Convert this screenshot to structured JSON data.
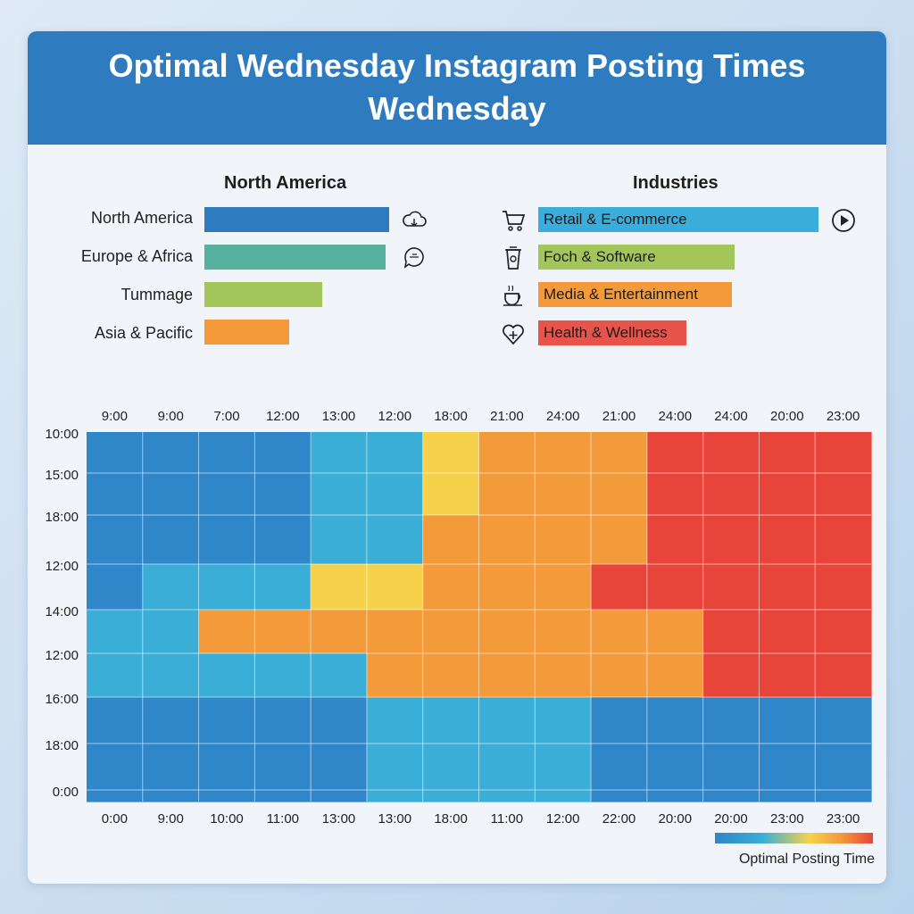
{
  "title_line1": "Optimal Wednesday Instagram Posting Times",
  "title_line2": "Wednesday",
  "regions": {
    "title": "North America",
    "items": [
      {
        "label": "North America",
        "value": 1.0,
        "color": "#2f7bbf",
        "icon": "cloud-icon"
      },
      {
        "label": "Europe & Africa",
        "value": 0.98,
        "color": "#57b19f",
        "icon": "chat-icon"
      },
      {
        "label": "Tummage",
        "value": 0.64,
        "color": "#a3c65b",
        "icon": ""
      },
      {
        "label": "Asia & Pacific",
        "value": 0.46,
        "color": "#f59a3a",
        "icon": ""
      }
    ]
  },
  "industries": {
    "title": "Industries",
    "items": [
      {
        "label": "Retail & E-commerce",
        "value": 1.0,
        "color": "#3aaddb",
        "icon": "shopping-cart-icon",
        "trail_icon": "play-icon"
      },
      {
        "label": "Foch & Software",
        "value": 0.7,
        "color": "#a3c65b",
        "icon": "coffee-cup-icon"
      },
      {
        "label": "Media & Entertainment",
        "value": 0.69,
        "color": "#f59a3a",
        "icon": "teacup-icon"
      },
      {
        "label": "Health & Wellness",
        "value": 0.53,
        "color": "#e8534a",
        "icon": "heart-plus-icon"
      }
    ]
  },
  "legend": {
    "label": "Optimal Posting Time",
    "colors": [
      "#2f86c8",
      "#3aaed6",
      "#f6d24a",
      "#f39a3a",
      "#e8453a"
    ]
  },
  "chart_data": {
    "type": "heatmap",
    "x_top_labels": [
      "9:00",
      "9:00",
      "7:00",
      "12:00",
      "13:00",
      "12:00",
      "18:00",
      "21:00",
      "24:00",
      "21:00",
      "24:00",
      "24:00",
      "20:00",
      "23:00"
    ],
    "x_bottom_labels": [
      "0:00",
      "9:00",
      "10:00",
      "11:00",
      "13:00",
      "13:00",
      "18:00",
      "11:00",
      "12:00",
      "22:00",
      "20:00",
      "20:00",
      "23:00",
      "23:00"
    ],
    "y_labels": [
      "10:00",
      "15:00",
      "18:00",
      "12:00",
      "14:00",
      "12:00",
      "16:00",
      "18:00",
      "0:00"
    ],
    "scale": "0 = low (blue) to 4 = optimal (red)",
    "rows": [
      [
        0,
        0,
        0,
        0,
        1,
        1,
        2,
        3,
        3,
        3,
        4,
        4,
        4,
        4
      ],
      [
        0,
        0,
        0,
        0,
        1,
        1,
        2,
        3,
        3,
        3,
        4,
        4,
        4,
        4
      ],
      [
        0,
        0,
        0,
        0,
        1,
        1,
        3,
        3,
        3,
        3,
        4,
        4,
        4,
        4
      ],
      [
        0,
        1,
        1,
        1,
        2,
        2,
        3,
        3,
        3,
        4,
        4,
        4,
        4,
        4
      ],
      [
        1,
        1,
        3,
        3,
        3,
        3,
        3,
        3,
        3,
        3,
        3,
        4,
        4,
        4
      ],
      [
        1,
        1,
        1,
        1,
        1,
        3,
        3,
        3,
        3,
        3,
        3,
        4,
        4,
        4
      ],
      [
        0,
        0,
        0,
        0,
        0,
        1,
        1,
        1,
        1,
        0,
        0,
        0,
        0,
        0
      ],
      [
        0,
        0,
        0,
        0,
        0,
        1,
        1,
        1,
        1,
        0,
        0,
        0,
        0,
        0
      ],
      [
        0,
        0,
        0,
        0,
        0,
        1,
        1,
        1,
        1,
        0,
        0,
        0,
        0,
        0
      ]
    ]
  }
}
